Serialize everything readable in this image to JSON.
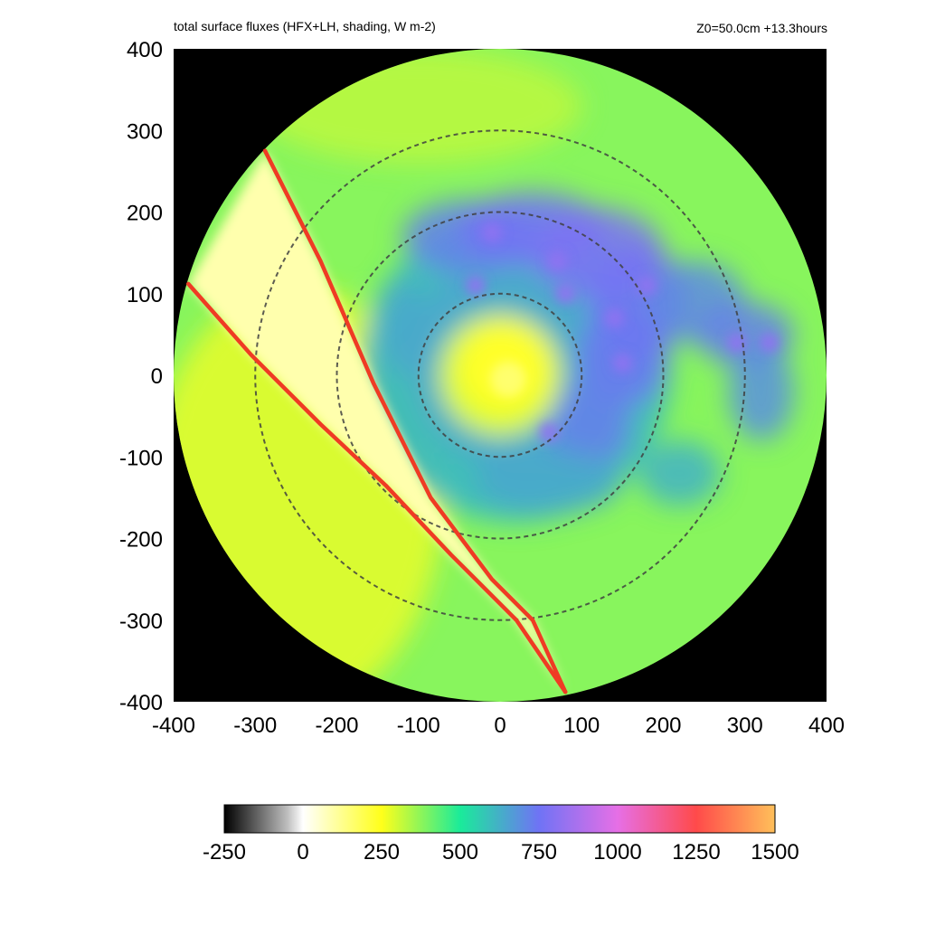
{
  "header": {
    "left": "total surface fluxes (HFX+LH, shading, W m-2)",
    "right": "Z0=50.0cm  +13.3hours"
  },
  "chart_data": {
    "type": "heatmap",
    "title": "total surface fluxes (HFX+LH, shading, W m-2)",
    "annotation": "Z0=50.0cm  +13.3hours",
    "xlabel": "",
    "ylabel": "",
    "xlim": [
      -400,
      400
    ],
    "ylim": [
      -400,
      400
    ],
    "x_ticks": [
      "-400",
      "-300",
      "-200",
      "-100",
      "0",
      "100",
      "200",
      "300",
      "400"
    ],
    "y_ticks": [
      "400",
      "300",
      "200",
      "100",
      "0",
      "-100",
      "-200",
      "-300",
      "-400"
    ],
    "domain_radius": 400,
    "range_rings": [
      100,
      200,
      300
    ],
    "colorbar": {
      "range": [
        -250,
        1500
      ],
      "ticks": [
        "-250",
        "0",
        "250",
        "500",
        "750",
        "1000",
        "1250",
        "1500"
      ],
      "stops": [
        {
          "value": -250,
          "color": "#000000"
        },
        {
          "value": -50,
          "color": "#bdbdbd"
        },
        {
          "value": 0,
          "color": "#ffffff"
        },
        {
          "value": 250,
          "color": "#ffff1a"
        },
        {
          "value": 500,
          "color": "#1aeb9a"
        },
        {
          "value": 750,
          "color": "#6f73f5"
        },
        {
          "value": 1000,
          "color": "#e66fe6"
        },
        {
          "value": 1250,
          "color": "#ff4a4a"
        },
        {
          "value": 1500,
          "color": "#ffc05a"
        }
      ]
    },
    "features": [
      {
        "name": "calm eye",
        "center": [
          0,
          0
        ],
        "radius": 60,
        "flux": 230
      },
      {
        "name": "inner eyewall",
        "radius": 130,
        "flux": 600
      },
      {
        "name": "spiral band max",
        "center": [
          150,
          120
        ],
        "flux": 780
      },
      {
        "name": "outer band",
        "center": [
          300,
          60
        ],
        "flux": 700
      },
      {
        "name": "environment",
        "flux": 380
      }
    ],
    "wedge": {
      "outer_edge": [
        [
          -288,
          275
        ],
        [
          -220,
          140
        ],
        [
          -155,
          -10
        ],
        [
          -85,
          -150
        ],
        [
          -10,
          -250
        ],
        [
          40,
          -300
        ],
        [
          80,
          -388
        ]
      ],
      "inner_edge": [
        [
          -382,
          112
        ],
        [
          -305,
          25
        ],
        [
          -220,
          -60
        ],
        [
          -140,
          -135
        ],
        [
          -60,
          -220
        ],
        [
          20,
          -300
        ],
        [
          80,
          -388
        ]
      ],
      "flux": 90
    }
  }
}
